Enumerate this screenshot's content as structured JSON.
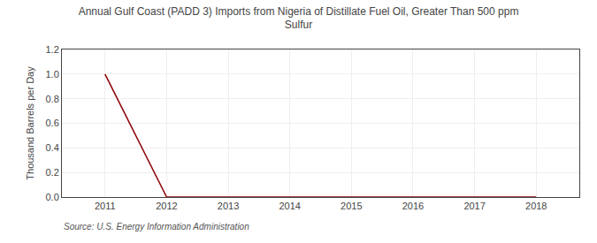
{
  "chart_data": {
    "type": "line",
    "title": "Annual Gulf Coast (PADD 3) Imports from Nigeria of Distillate Fuel Oil, Greater Than 500 ppm\nSulfur",
    "ylabel": "Thousand Barrels per Day",
    "annotations": [
      "Source: U.S. Energy Information Administration"
    ],
    "x": [
      2011,
      2012,
      2013,
      2014,
      2015,
      2016,
      2017,
      2018
    ],
    "series": [
      {
        "color": "#8b0000",
        "values": [
          1.0,
          0.0,
          0.0,
          0.0,
          0.0,
          0.0,
          0.0,
          0.0
        ]
      }
    ],
    "xlim": [
      2010.3,
      2018.7
    ],
    "xticks": [
      2011,
      2012,
      2013,
      2014,
      2015,
      2016,
      2017,
      2018
    ],
    "ylim": [
      0.0,
      1.2
    ],
    "yticks": [
      {
        "value": 0.0,
        "label": "0.0"
      },
      0.2,
      0.4,
      0.6,
      0.8,
      {
        "value": 1.0,
        "label": "1.0"
      },
      1.2
    ],
    "grid": true
  }
}
